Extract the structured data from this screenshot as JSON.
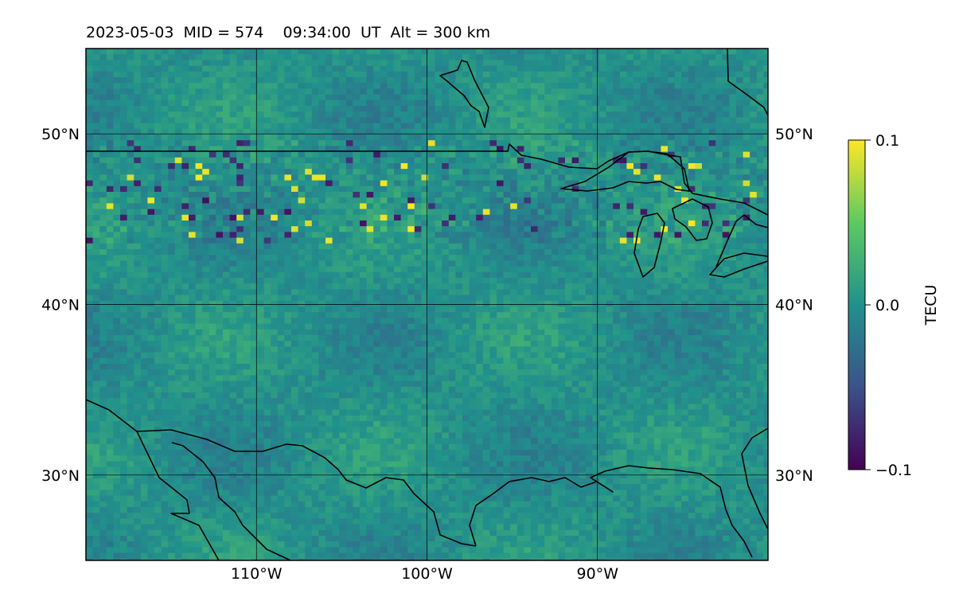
{
  "title": "2023-05-03  MID = 574    09:34:00  UT  Alt = 300 km",
  "map": {
    "lon_range": [
      -120,
      -80
    ],
    "lat_range": [
      25,
      55
    ],
    "lon_ticks": [
      {
        "value": -110,
        "label": "110°W"
      },
      {
        "value": -100,
        "label": "100°W"
      },
      {
        "value": -90,
        "label": "90°W"
      }
    ],
    "lat_ticks": [
      {
        "value": 50,
        "label": "50°N"
      },
      {
        "value": 40,
        "label": "40°N"
      },
      {
        "value": 30,
        "label": "30°N"
      }
    ],
    "colormap": "viridis"
  },
  "colorbar": {
    "label": "TECU",
    "vmin": -0.1,
    "vmax": 0.1,
    "ticks": [
      {
        "value": 0.1,
        "label": "0.1"
      },
      {
        "value": 0.0,
        "label": "0.0"
      },
      {
        "value": -0.1,
        "label": "−0.1"
      }
    ],
    "colors": [
      "#440154",
      "#3b528b",
      "#21918c",
      "#5ec962",
      "#fde725"
    ]
  }
}
